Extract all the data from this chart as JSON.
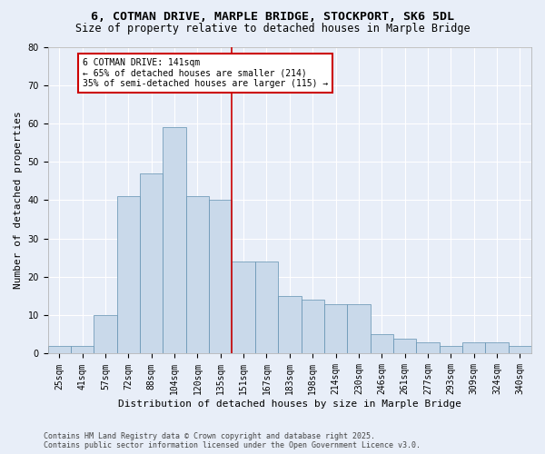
{
  "title": "6, COTMAN DRIVE, MARPLE BRIDGE, STOCKPORT, SK6 5DL",
  "subtitle": "Size of property relative to detached houses in Marple Bridge",
  "xlabel": "Distribution of detached houses by size in Marple Bridge",
  "ylabel": "Number of detached properties",
  "categories": [
    "25sqm",
    "41sqm",
    "57sqm",
    "72sqm",
    "88sqm",
    "104sqm",
    "120sqm",
    "135sqm",
    "151sqm",
    "167sqm",
    "183sqm",
    "198sqm",
    "214sqm",
    "230sqm",
    "246sqm",
    "261sqm",
    "277sqm",
    "293sqm",
    "309sqm",
    "324sqm",
    "340sqm"
  ],
  "values": [
    2,
    2,
    10,
    41,
    47,
    59,
    41,
    40,
    24,
    24,
    15,
    14,
    13,
    13,
    5,
    4,
    3,
    2,
    3,
    3,
    2
  ],
  "bar_color": "#c9d9ea",
  "bar_edge_color": "#6090b0",
  "bar_width": 1.0,
  "property_label": "6 COTMAN DRIVE: 141sqm",
  "annotation_line1": "← 65% of detached houses are smaller (214)",
  "annotation_line2": "35% of semi-detached houses are larger (115) →",
  "annotation_box_color": "#ffffff",
  "annotation_box_edge": "#cc0000",
  "line_color": "#cc0000",
  "ylim": [
    0,
    80
  ],
  "yticks": [
    0,
    10,
    20,
    30,
    40,
    50,
    60,
    70,
    80
  ],
  "bg_color": "#e8eef8",
  "plot_bg_color": "#e8eef8",
  "footer1": "Contains HM Land Registry data © Crown copyright and database right 2025.",
  "footer2": "Contains public sector information licensed under the Open Government Licence v3.0.",
  "title_fontsize": 9.5,
  "subtitle_fontsize": 8.5,
  "xlabel_fontsize": 8,
  "ylabel_fontsize": 8,
  "tick_fontsize": 7,
  "annotation_fontsize": 7,
  "footer_fontsize": 6
}
